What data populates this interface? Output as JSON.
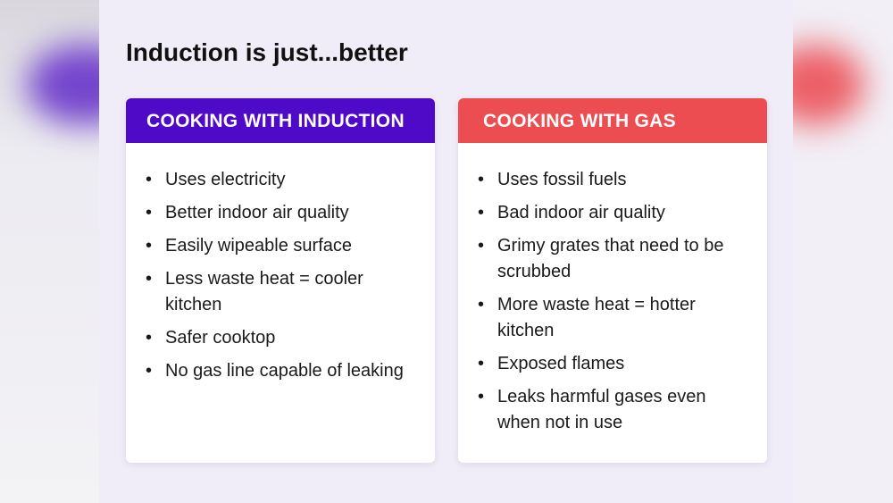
{
  "title": "Induction is just...better",
  "colors": {
    "induction": "#4f0ac7",
    "gas": "#ec4d51"
  },
  "induction": {
    "header": "COOKING WITH INDUCTION",
    "items": [
      "Uses electricity",
      "Better indoor air quality",
      "Easily wipeable surface",
      "Less waste heat = cooler kitchen",
      "Safer cooktop",
      "No gas line capable of leaking"
    ]
  },
  "gas": {
    "header": "COOKING WITH GAS",
    "items": [
      "Uses fossil fuels",
      "Bad indoor air quality",
      "Grimy grates that need to be scrubbed",
      "More waste heat = hotter kitchen",
      "Exposed flames",
      "Leaks harmful gases even when not in use"
    ]
  }
}
